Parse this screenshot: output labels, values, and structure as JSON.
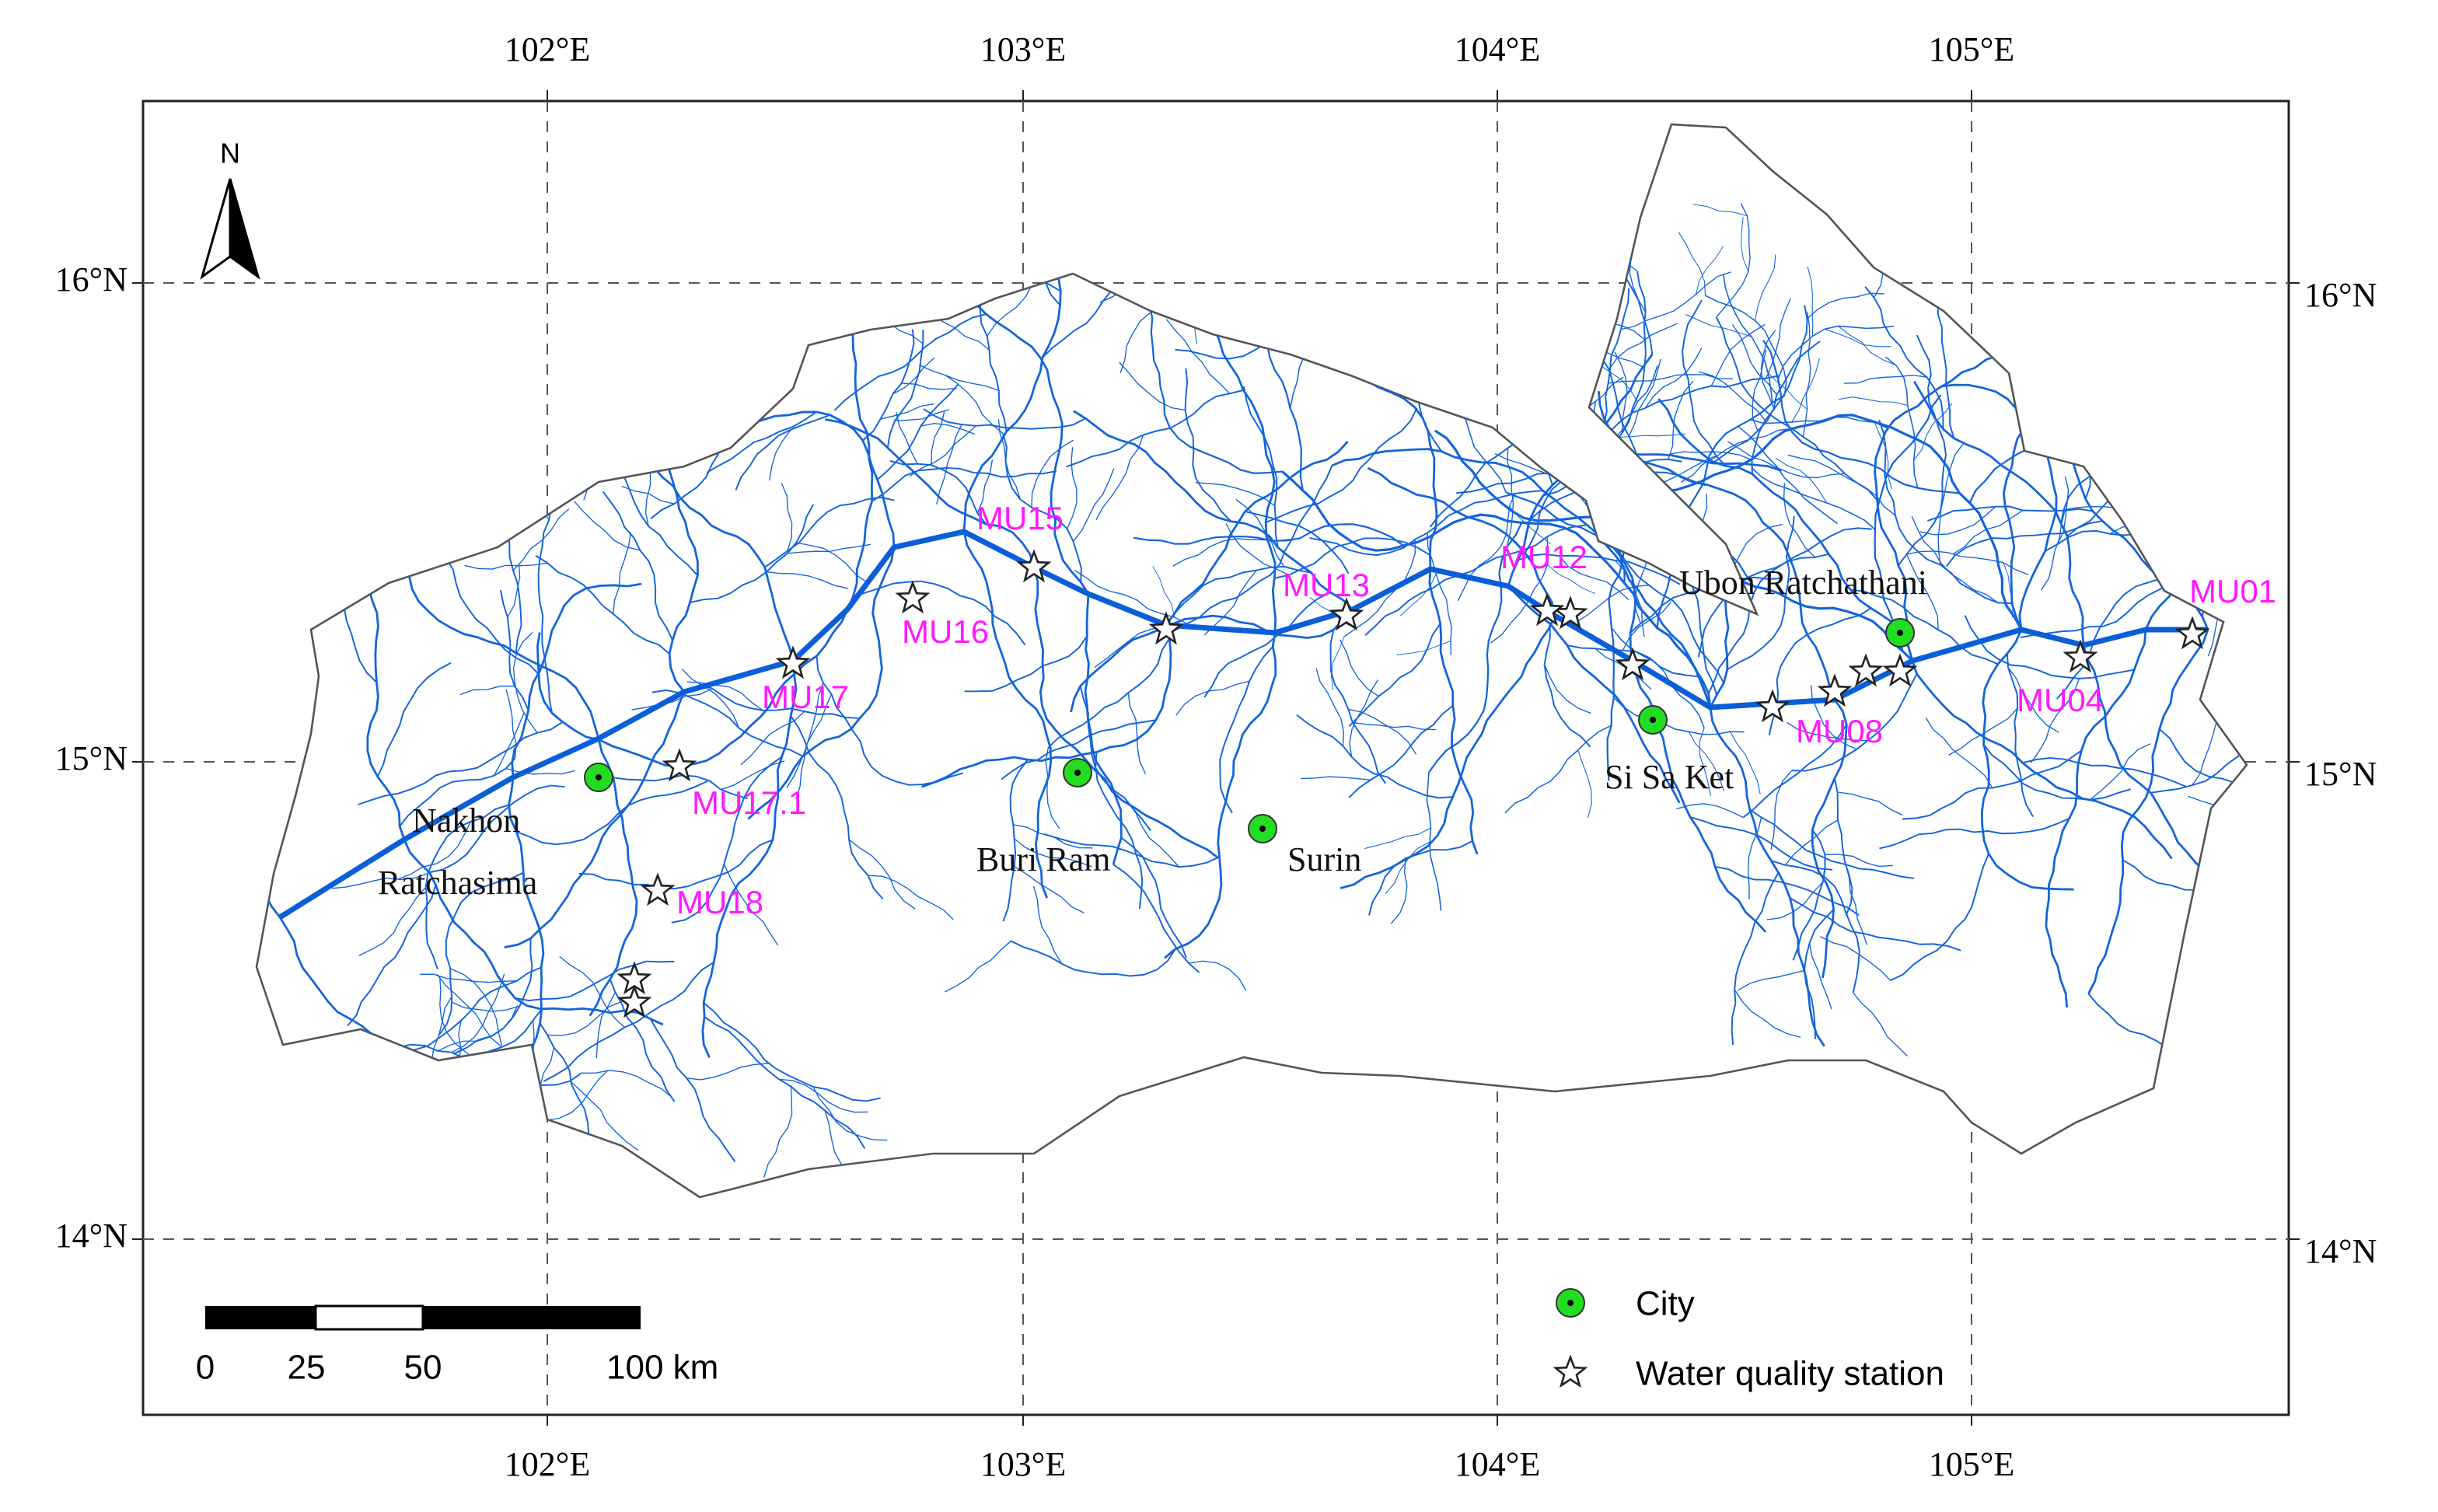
{
  "map": {
    "lon_labels": [
      "102°E",
      "103°E",
      "104°E",
      "105°E"
    ],
    "lat_labels": [
      "16°N",
      "15°N",
      "14°N"
    ],
    "north": "N",
    "cities": [
      {
        "lines": [
          "Nakhon",
          "Ratchasima"
        ]
      },
      {
        "lines": [
          "Buri Ram"
        ]
      },
      {
        "lines": [
          "Surin"
        ]
      },
      {
        "lines": [
          "Si Sa Ket"
        ]
      },
      {
        "lines": [
          "Ubon Ratchathani"
        ]
      }
    ],
    "stations": [
      "MU15",
      "MU16",
      "MU17",
      "MU17.1",
      "MU18",
      "MU13",
      "MU12",
      "MU08",
      "MU04",
      "MU01"
    ],
    "legend": [
      "City",
      "Water quality station"
    ],
    "scale_bar": [
      "0",
      "25",
      "50",
      "100 km"
    ]
  }
}
